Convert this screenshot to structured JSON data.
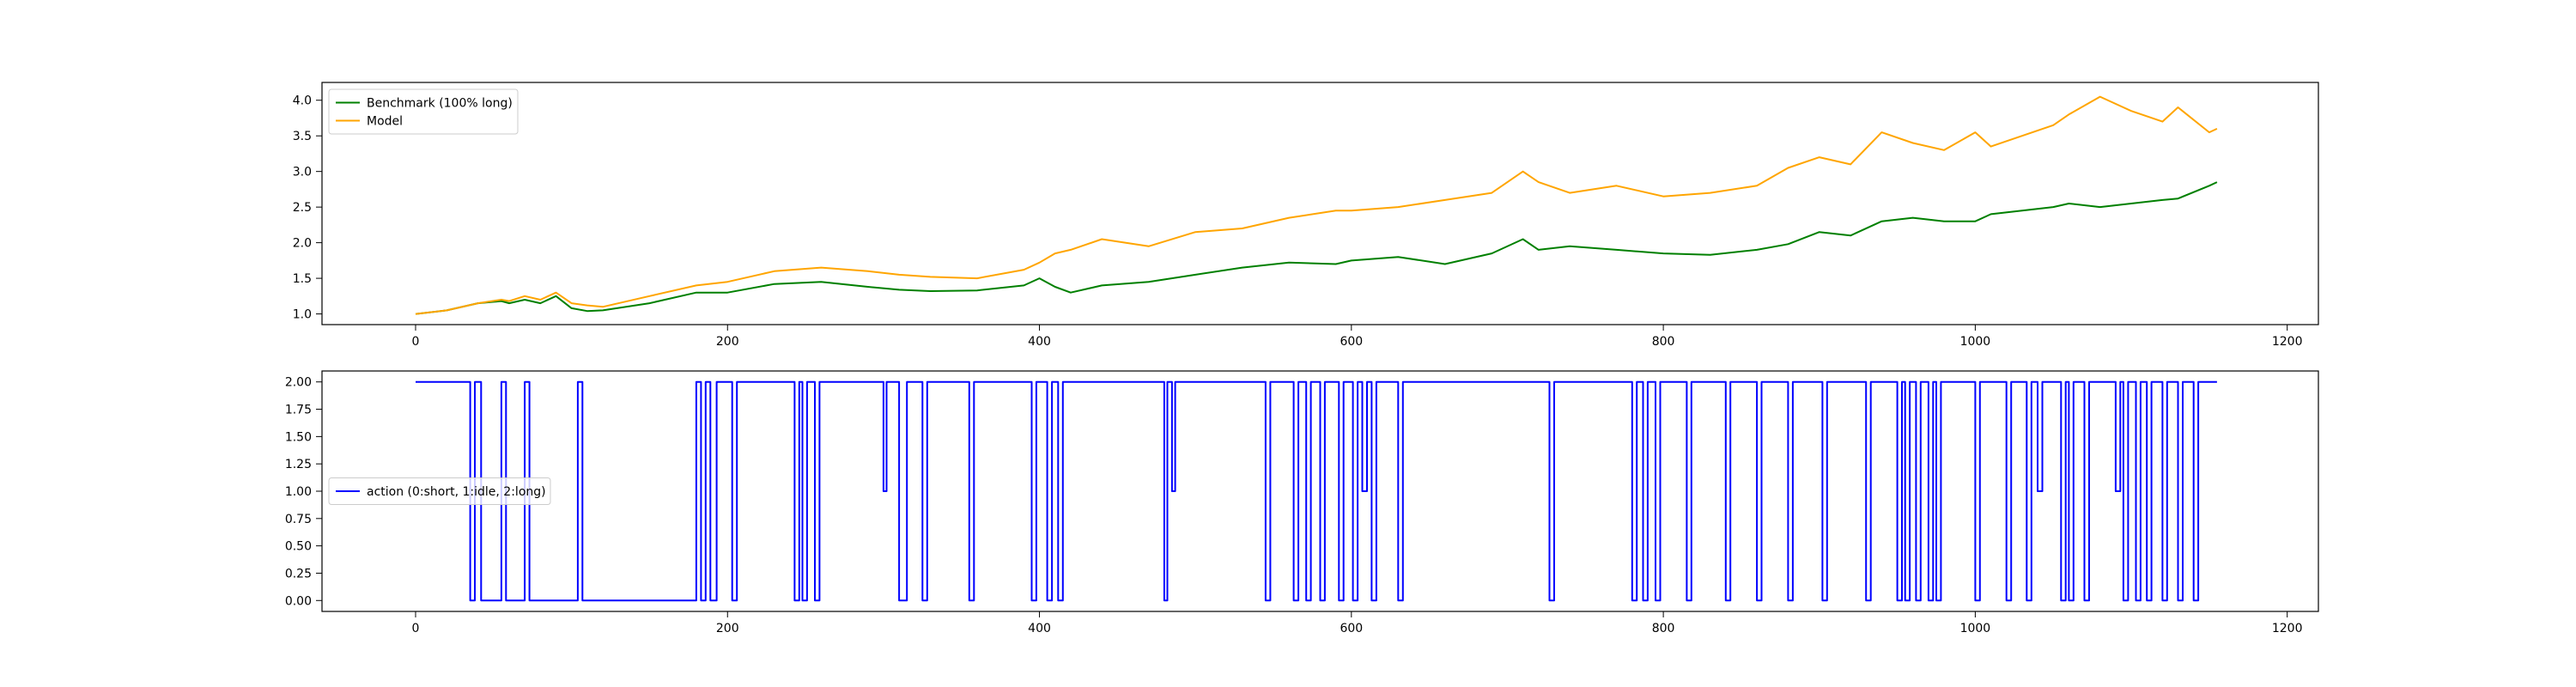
{
  "chart_data": [
    {
      "type": "line",
      "title": "",
      "xlabel": "",
      "ylabel": "",
      "xlim": [
        -60,
        1220
      ],
      "ylim": [
        0.85,
        4.25
      ],
      "x_ticks": [
        0,
        200,
        400,
        600,
        800,
        1000,
        1200
      ],
      "y_ticks": [
        1.0,
        1.5,
        2.0,
        2.5,
        3.0,
        3.5,
        4.0
      ],
      "x_tick_labels": [
        "0",
        "200",
        "400",
        "600",
        "800",
        "1000",
        "1200"
      ],
      "y_tick_labels": [
        "1.0",
        "1.5",
        "2.0",
        "2.5",
        "3.0",
        "3.5",
        "4.0"
      ],
      "grid": false,
      "legend_position": "upper-left",
      "series": [
        {
          "name": "Benchmark (100% long)",
          "color": "#008000",
          "x": [
            0,
            20,
            40,
            55,
            60,
            70,
            80,
            90,
            100,
            110,
            120,
            150,
            180,
            200,
            230,
            260,
            290,
            310,
            330,
            360,
            390,
            400,
            410,
            420,
            440,
            470,
            500,
            530,
            560,
            590,
            600,
            630,
            660,
            690,
            710,
            720,
            740,
            770,
            800,
            830,
            860,
            880,
            900,
            920,
            940,
            960,
            980,
            1000,
            1010,
            1030,
            1050,
            1060,
            1080,
            1100,
            1120,
            1130,
            1150,
            1155
          ],
          "values": [
            1.0,
            1.05,
            1.15,
            1.18,
            1.15,
            1.2,
            1.15,
            1.25,
            1.08,
            1.04,
            1.05,
            1.15,
            1.3,
            1.3,
            1.42,
            1.45,
            1.38,
            1.34,
            1.32,
            1.33,
            1.4,
            1.5,
            1.38,
            1.3,
            1.4,
            1.45,
            1.55,
            1.65,
            1.72,
            1.7,
            1.75,
            1.8,
            1.7,
            1.85,
            2.05,
            1.9,
            1.95,
            1.9,
            1.85,
            1.83,
            1.9,
            1.98,
            2.15,
            2.1,
            2.3,
            2.35,
            2.3,
            2.3,
            2.4,
            2.45,
            2.5,
            2.55,
            2.5,
            2.55,
            2.6,
            2.62,
            2.8,
            2.85
          ]
        },
        {
          "name": "Model",
          "color": "#FFA500",
          "x": [
            0,
            20,
            40,
            55,
            60,
            70,
            80,
            90,
            100,
            110,
            120,
            150,
            180,
            200,
            230,
            260,
            290,
            310,
            330,
            360,
            390,
            400,
            410,
            420,
            440,
            470,
            500,
            530,
            560,
            590,
            600,
            630,
            660,
            690,
            710,
            720,
            740,
            770,
            800,
            830,
            860,
            880,
            900,
            920,
            940,
            960,
            980,
            1000,
            1010,
            1030,
            1050,
            1060,
            1080,
            1100,
            1120,
            1130,
            1150,
            1155
          ],
          "values": [
            1.0,
            1.05,
            1.15,
            1.2,
            1.18,
            1.25,
            1.2,
            1.3,
            1.15,
            1.12,
            1.1,
            1.25,
            1.4,
            1.45,
            1.6,
            1.65,
            1.6,
            1.55,
            1.52,
            1.5,
            1.62,
            1.72,
            1.85,
            1.9,
            2.05,
            1.95,
            2.15,
            2.2,
            2.35,
            2.45,
            2.45,
            2.5,
            2.6,
            2.7,
            3.0,
            2.85,
            2.7,
            2.8,
            2.65,
            2.7,
            2.8,
            3.05,
            3.2,
            3.1,
            3.55,
            3.4,
            3.3,
            3.55,
            3.35,
            3.5,
            3.65,
            3.8,
            4.05,
            3.85,
            3.7,
            3.9,
            3.55,
            3.6
          ]
        }
      ]
    },
    {
      "type": "line",
      "title": "",
      "xlabel": "",
      "ylabel": "",
      "xlim": [
        -60,
        1220
      ],
      "ylim": [
        -0.1,
        2.1
      ],
      "x_ticks": [
        0,
        200,
        400,
        600,
        800,
        1000,
        1200
      ],
      "y_ticks": [
        0.0,
        0.25,
        0.5,
        0.75,
        1.0,
        1.25,
        1.5,
        1.75,
        2.0
      ],
      "x_tick_labels": [
        "0",
        "200",
        "400",
        "600",
        "800",
        "1000",
        "1200"
      ],
      "y_tick_labels": [
        "0.00",
        "0.25",
        "0.50",
        "0.75",
        "1.00",
        "1.25",
        "1.50",
        "1.75",
        "2.00"
      ],
      "grid": false,
      "legend_position": "center-left",
      "step": true,
      "series": [
        {
          "name": "action (0:short, 1:idle, 2:long)",
          "color": "#0000FF",
          "x": [
            0,
            35,
            38,
            42,
            55,
            58,
            70,
            73,
            104,
            107,
            180,
            183,
            186,
            189,
            193,
            203,
            206,
            243,
            246,
            248,
            251,
            256,
            259,
            300,
            301,
            302,
            310,
            315,
            325,
            328,
            355,
            358,
            395,
            398,
            405,
            408,
            412,
            415,
            480,
            482,
            485,
            487,
            545,
            548,
            563,
            566,
            571,
            574,
            580,
            583,
            592,
            595,
            601,
            604,
            607,
            610,
            613,
            616,
            630,
            633,
            727,
            730,
            780,
            783,
            787,
            790,
            795,
            798,
            815,
            818,
            840,
            843,
            860,
            863,
            880,
            883,
            902,
            905,
            930,
            933,
            950,
            953,
            955,
            958,
            962,
            965,
            970,
            973,
            975,
            978,
            1000,
            1003,
            1020,
            1023,
            1033,
            1036,
            1040,
            1043,
            1055,
            1058,
            1060,
            1063,
            1070,
            1073,
            1090,
            1093,
            1095,
            1098,
            1103,
            1106,
            1110,
            1113,
            1120,
            1123,
            1130,
            1133,
            1140,
            1143,
            1155
          ],
          "values": [
            2,
            0,
            2,
            0,
            2,
            0,
            2,
            0,
            2,
            0,
            2,
            0,
            2,
            0,
            2,
            0,
            2,
            0,
            2,
            0,
            2,
            0,
            2,
            1,
            1,
            2,
            0,
            2,
            0,
            2,
            0,
            2,
            0,
            2,
            0,
            2,
            0,
            2,
            0,
            2,
            1,
            2,
            0,
            2,
            0,
            2,
            0,
            2,
            0,
            2,
            0,
            2,
            0,
            2,
            1,
            2,
            0,
            2,
            0,
            2,
            0,
            2,
            0,
            2,
            0,
            2,
            0,
            2,
            0,
            2,
            0,
            2,
            0,
            2,
            0,
            2,
            0,
            2,
            0,
            2,
            0,
            2,
            0,
            2,
            0,
            2,
            0,
            2,
            0,
            2,
            0,
            2,
            0,
            2,
            0,
            2,
            1,
            2,
            0,
            2,
            0,
            2,
            0,
            2,
            1,
            2,
            0,
            2,
            0,
            2,
            0,
            2,
            0,
            2,
            0,
            2,
            0,
            2,
            2
          ]
        }
      ]
    }
  ]
}
